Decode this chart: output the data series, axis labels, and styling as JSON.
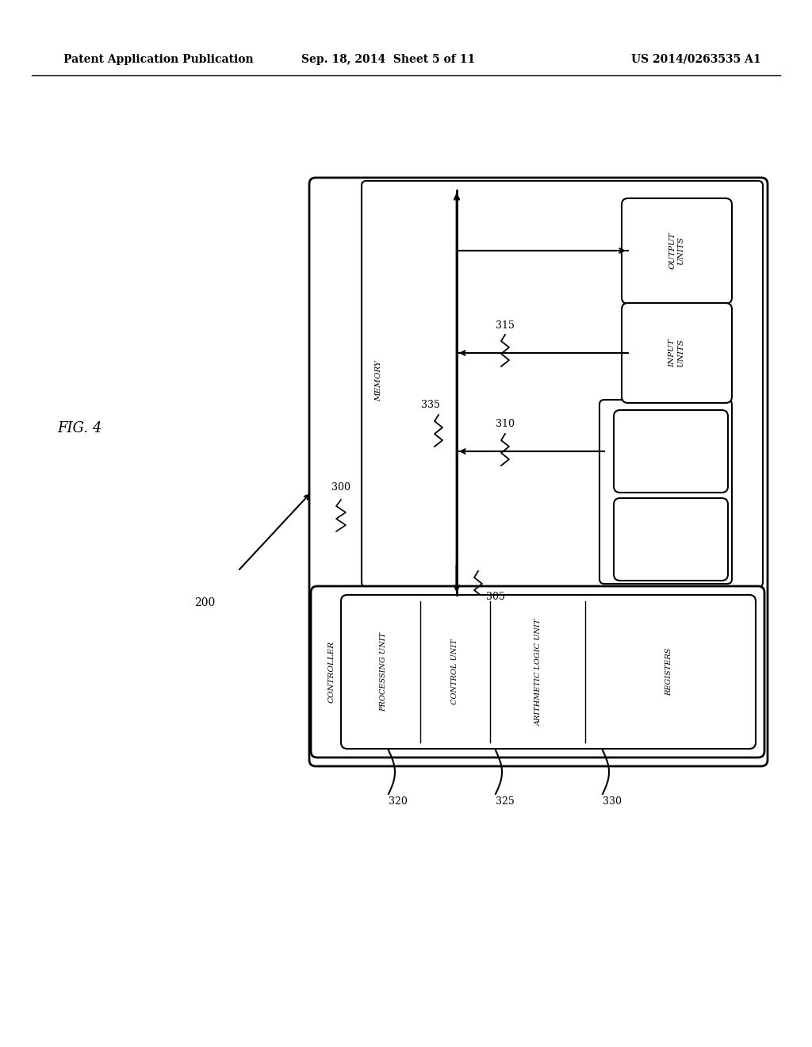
{
  "background_color": "#ffffff",
  "header_left": "Patent Application Publication",
  "header_center": "Sep. 18, 2014  Sheet 5 of 11",
  "header_right": "US 2014/0263535 A1",
  "fig_label": "FIG. 4",
  "ref_200": "200",
  "ref_300": "300",
  "ref_305": "305",
  "ref_310": "310",
  "ref_315": "315",
  "ref_320": "320",
  "ref_325": "325",
  "ref_330": "330",
  "ref_335": "335"
}
